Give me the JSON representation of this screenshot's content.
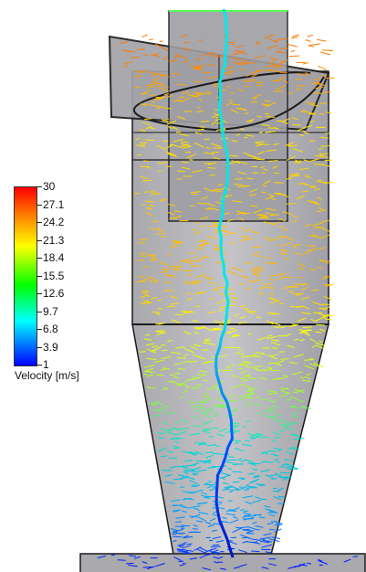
{
  "legend": {
    "title": "Velocity [m/s]",
    "ticks": [
      "30",
      "27.1",
      "24.2",
      "21.3",
      "18.4",
      "15.5",
      "12.6",
      "9.7",
      "6.8",
      "3.9",
      "1"
    ],
    "colors": [
      "#ff0000",
      "#ff8000",
      "#ffff00",
      "#00ff00",
      "#00ffff",
      "#0000ff"
    ]
  },
  "scene": {
    "body_color": "#b5b5ba",
    "outline_color": "#1c1c1c",
    "core_color": "#00e8e8",
    "vortex_color": "#0010c8"
  }
}
